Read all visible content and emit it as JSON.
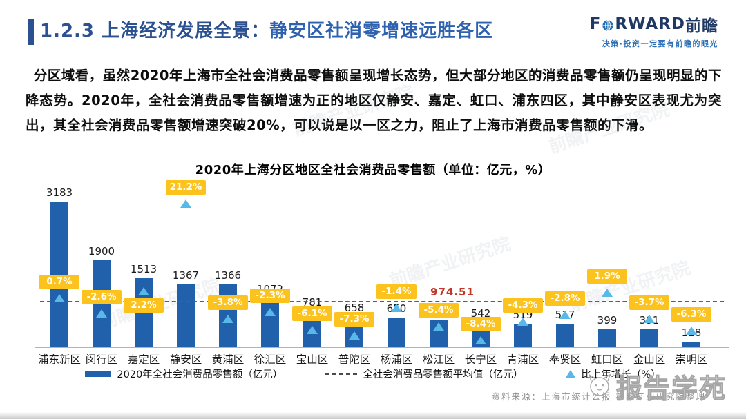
{
  "header": {
    "title_prefix": "1.2.3 上海经济发展全景：",
    "title_highlight": "静安区社消零增速远胜各区",
    "logo": {
      "part1": "F",
      "part2": "RWARD",
      "part3": "前瞻",
      "tagline": "决策·投资一定要有前瞻的眼光"
    }
  },
  "body_paragraph": "分区域看，虽然2020年上海市全社会消费品零售额呈现增长态势，但大部分地区的消费品零售额仍呈现明显的下降态势。2020年，全社会消费品零售额增速为正的地区仅静安、嘉定、虹口、浦东四区，其中静安区表现尤为突出，其全社会消费品零售额增速突破20%，可以说是以一区之力，阻止了上海市消费品零售额的下滑。",
  "chart_data": {
    "type": "bar",
    "title": "2020年上海分区地区全社会消费品零售额（单位：亿元，%）",
    "categories": [
      "浦东新区",
      "闵行区",
      "嘉定区",
      "静安区",
      "黄浦区",
      "徐汇区",
      "宝山区",
      "普陀区",
      "杨浦区",
      "松江区",
      "长宁区",
      "青浦区",
      "奉贤区",
      "虹口区",
      "金山区",
      "崇明区"
    ],
    "series": [
      {
        "name": "2020年全社会消费品零售额（亿元）",
        "type": "bar",
        "values": [
          3183,
          1900,
          1513,
          1367,
          1366,
          1072,
          781,
          658,
          650,
          605,
          542,
          519,
          517,
          399,
          391,
          128
        ]
      },
      {
        "name": "比上年增长（%）",
        "type": "scatter-triangle",
        "values": [
          0.7,
          -2.6,
          2.2,
          21.2,
          -3.8,
          -2.3,
          -6.1,
          -7.3,
          -1.4,
          -5.4,
          -8.4,
          -4.3,
          -2.8,
          1.9,
          -3.7,
          -6.3
        ]
      }
    ],
    "growth_labels": [
      "0.7%",
      "-2.6%",
      "2.2%",
      "21.2%",
      "-3.8%",
      "-2.3%",
      "-6.1%",
      "-7.3%",
      "-1.4%",
      "-5.4%",
      "-8.4%",
      "-4.3%",
      "-2.8%",
      "1.9%",
      "-3.7%",
      "-6.3%"
    ],
    "label_below_indices": [
      2
    ],
    "average_line": {
      "label": "全社会消费品零售额平均值（亿元）",
      "value": 974.51
    },
    "ylim": [
      0,
      3400
    ],
    "grid": false,
    "legend_position": "bottom"
  },
  "legend": {
    "items": [
      {
        "label": "2020年全社会消费品零售额（亿元）",
        "swatch": "bar"
      },
      {
        "label": "全社会消费品零售额平均值（亿元）",
        "swatch": "dashed-line"
      },
      {
        "label": "比上年增长（%）",
        "swatch": "triangle"
      }
    ]
  },
  "footer": {
    "source": "资料来源：上海市统计公报  前瞻产业研究院整理",
    "watermark": "报告学苑"
  },
  "background_watermark": "前瞻产业研究院",
  "colors": {
    "bar": "#2161ab",
    "triangle": "#58b8e8",
    "growth_label_bg": "#fcc21d",
    "average_line": "#b23b34",
    "average_value_text": "#c0392b",
    "title_blue": "#2b5191",
    "logo_navy": "#1f3864"
  }
}
